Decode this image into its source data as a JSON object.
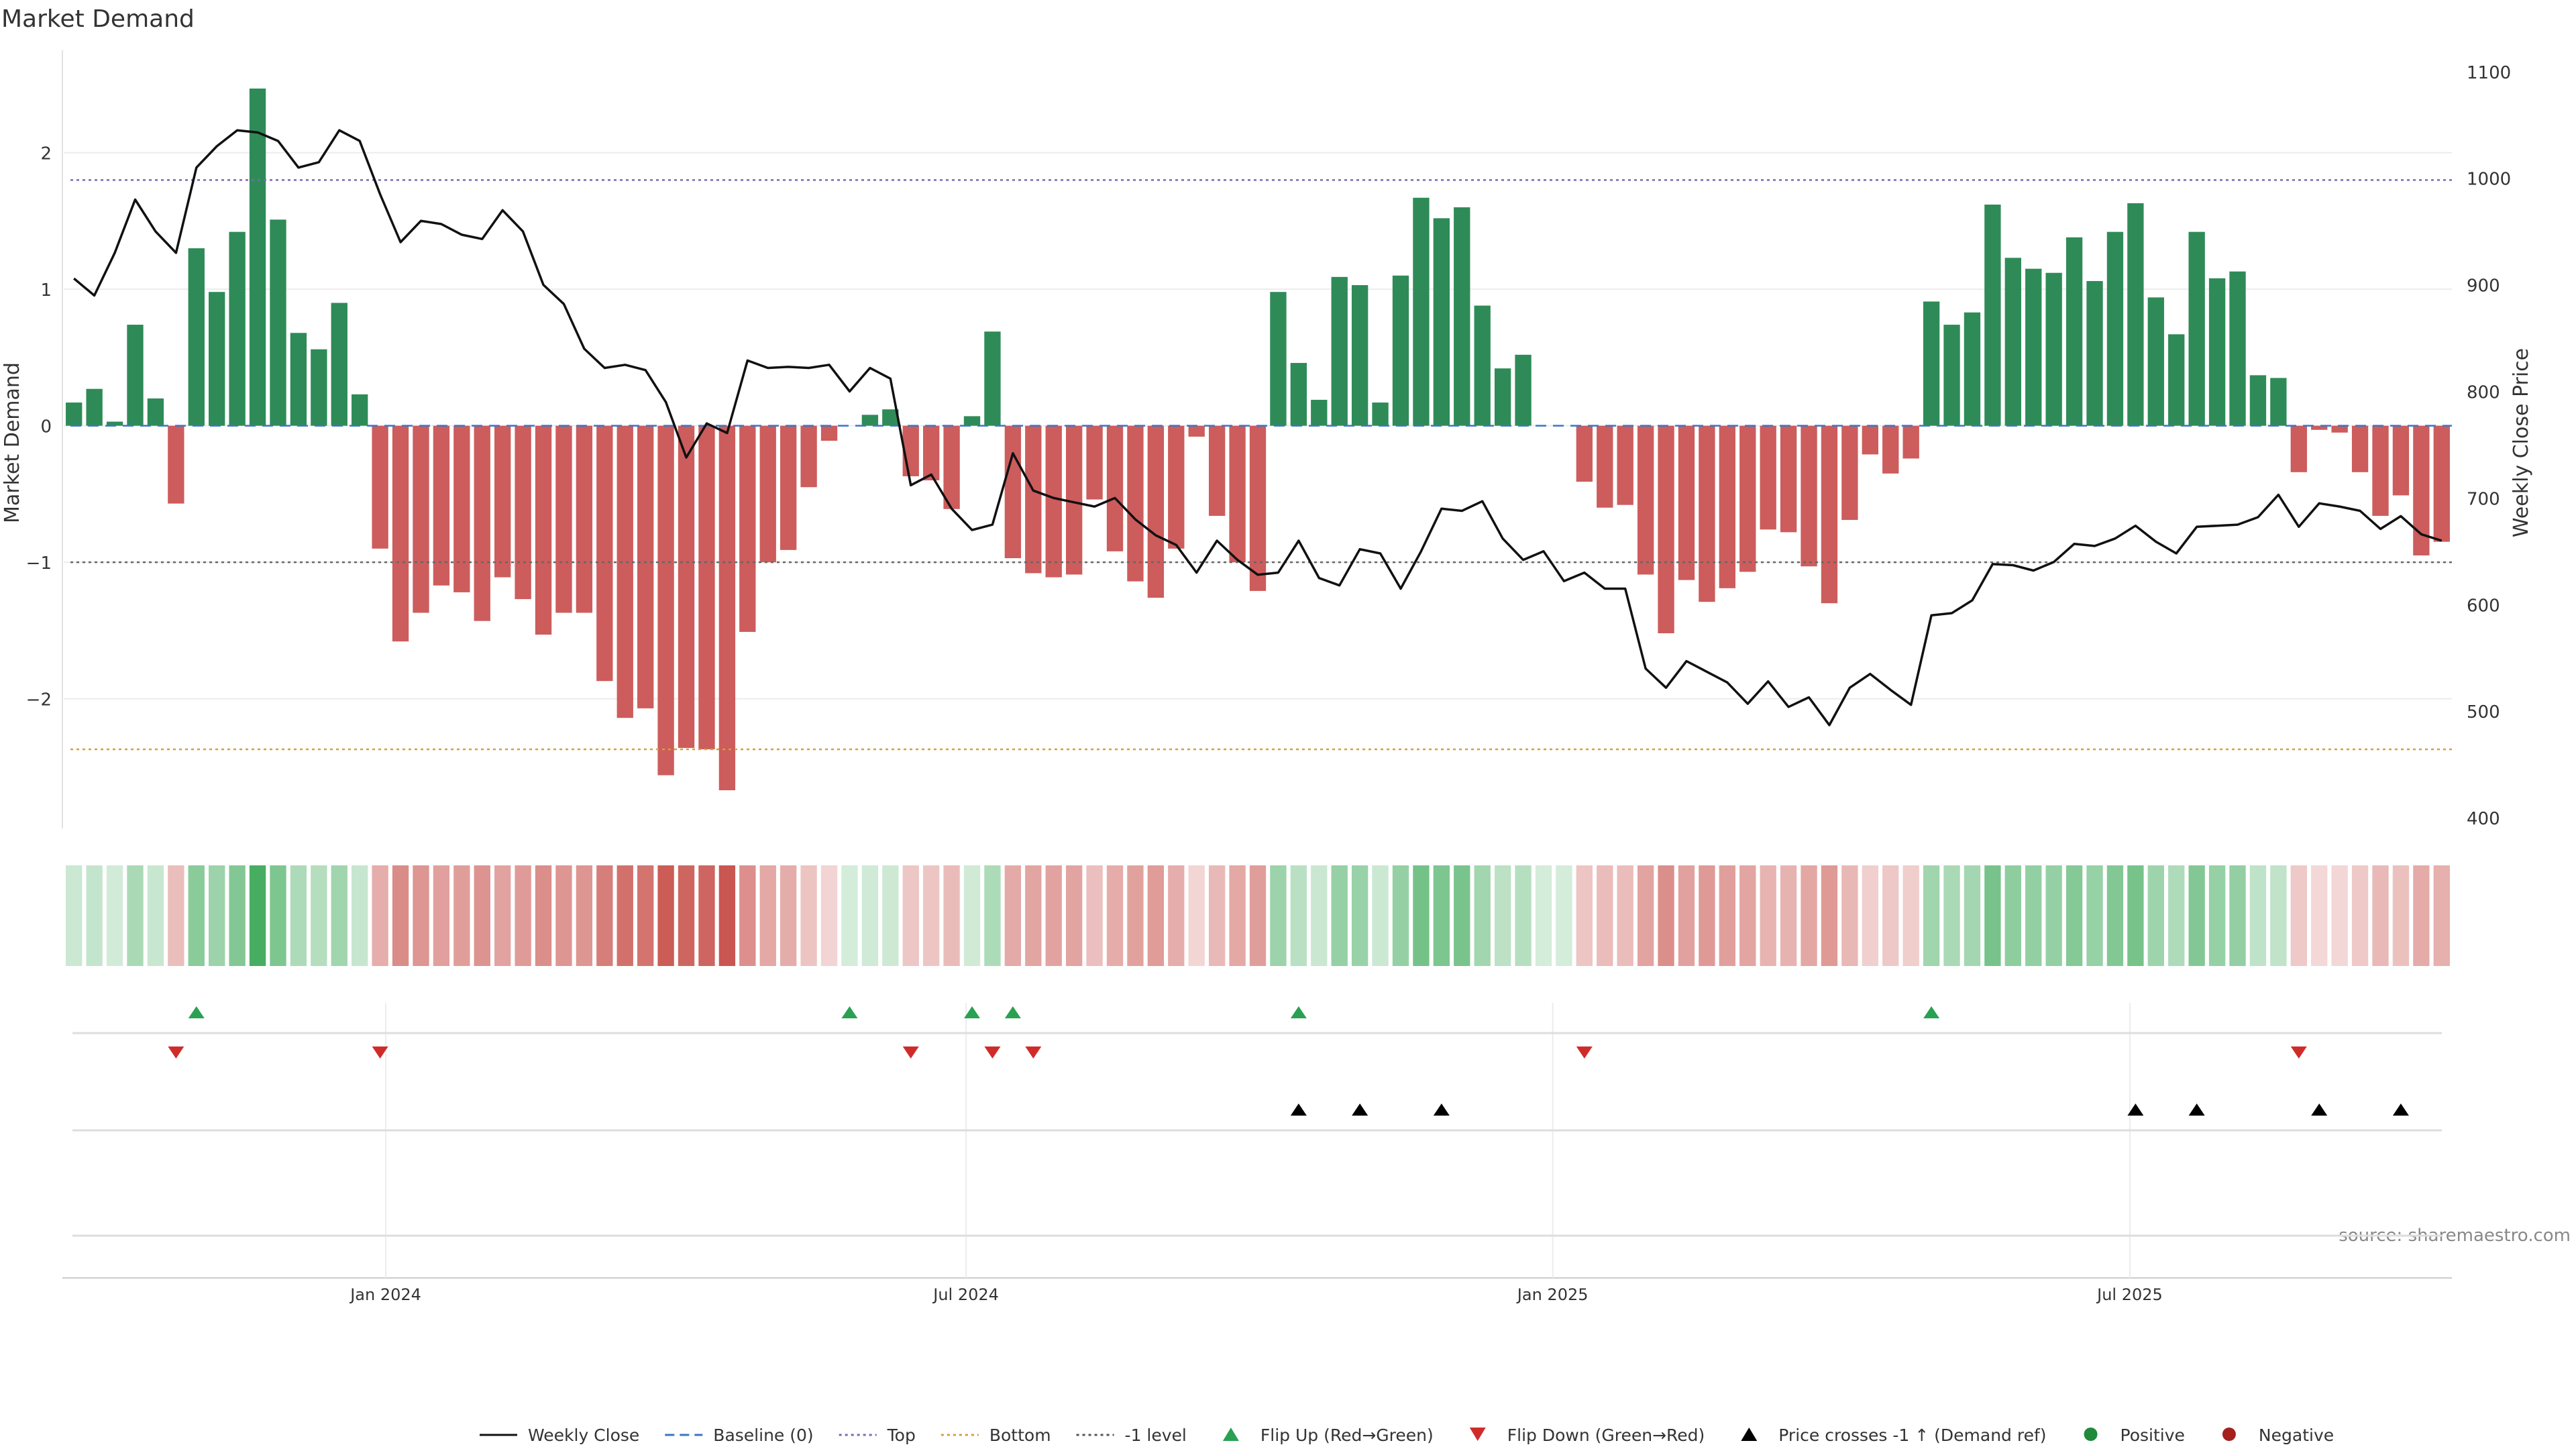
{
  "chart_data": {
    "type": "bar",
    "title": "Market Demand",
    "ylabel": "Market Demand",
    "y2label": "Weekly Close Price",
    "ylim": [
      -2.95,
      2.75
    ],
    "y2lim": [
      390,
      1120
    ],
    "yticks": [
      2,
      1,
      0,
      -1,
      -2
    ],
    "ytick_labels": [
      "2",
      "1",
      "0",
      "−1",
      "−2"
    ],
    "y2ticks": [
      1100,
      1000,
      900,
      800,
      700,
      600,
      500,
      400
    ],
    "y2tick_labels": [
      "1100",
      "1000",
      "900",
      "800",
      "700",
      "600",
      "500",
      "400"
    ],
    "x_start": "2023-09-22",
    "x_end": "2025-10-10",
    "xtick_labels": [
      {
        "date": "2024-01-01",
        "label": "Jan 2024"
      },
      {
        "date": "2024-07-01",
        "label": "Jul 2024"
      },
      {
        "date": "2025-01-01",
        "label": "Jan 2025"
      },
      {
        "date": "2025-07-01",
        "label": "Jul 2025"
      }
    ],
    "reference_lines": [
      {
        "name": "Top",
        "value": 1.8,
        "color": "#7b68b5"
      },
      {
        "name": "Bottom",
        "value": -2.37,
        "color": "#d4a03a"
      },
      {
        "name": "-1 level",
        "value": -1.0,
        "color": "#666666"
      },
      {
        "name": "Baseline (0)",
        "value": 0,
        "color": "#3a76c4"
      }
    ],
    "demand": [
      0.17,
      0.27,
      0.03,
      0.74,
      0.2,
      -0.57,
      1.3,
      0.98,
      1.42,
      2.47,
      1.51,
      0.68,
      0.56,
      0.9,
      0.23,
      -0.9,
      -1.58,
      -1.37,
      -1.17,
      -1.22,
      -1.43,
      -1.11,
      -1.27,
      -1.53,
      -1.37,
      -1.37,
      -1.87,
      -2.14,
      -2.07,
      -2.56,
      -2.36,
      -2.37,
      -2.67,
      -1.51,
      -1.0,
      -0.91,
      -0.45,
      -0.11,
      0.0,
      0.08,
      0.12,
      -0.37,
      -0.4,
      -0.61,
      0.07,
      0.69,
      -0.97,
      -1.08,
      -1.11,
      -1.09,
      -0.54,
      -0.92,
      -1.14,
      -1.26,
      -0.9,
      -0.08,
      -0.66,
      -1.0,
      -1.21,
      0.98,
      0.46,
      0.19,
      1.09,
      1.03,
      0.17,
      1.1,
      1.67,
      1.52,
      1.6,
      0.88,
      0.42,
      0.52,
      0.0,
      0.0,
      -0.41,
      -0.6,
      -0.58,
      -1.09,
      -1.52,
      -1.13,
      -1.29,
      -1.19,
      -1.07,
      -0.76,
      -0.78,
      -1.03,
      -1.3,
      -0.69,
      -0.21,
      -0.35,
      -0.24,
      0.91,
      0.74,
      0.83,
      1.62,
      1.23,
      1.15,
      1.12,
      1.38,
      1.06,
      1.42,
      1.63,
      0.94,
      0.67,
      1.42,
      1.08,
      1.13,
      0.37,
      0.35,
      -0.34,
      -0.03,
      -0.05,
      -0.34,
      -0.66,
      -0.51,
      -0.95,
      -0.85
    ],
    "price": [
      906,
      890,
      930,
      980,
      950,
      930,
      1010,
      1030,
      1045,
      1043,
      1035,
      1010,
      1015,
      1045,
      1035,
      985,
      940,
      960,
      957,
      947,
      943,
      970,
      950,
      900,
      882,
      840,
      822,
      825,
      820,
      790,
      738,
      770,
      761,
      829,
      822,
      823,
      822,
      825,
      800,
      822,
      812,
      712,
      722,
      690,
      670,
      675,
      742,
      707,
      700,
      696,
      692,
      700,
      680,
      665,
      656,
      630,
      660,
      642,
      628,
      630,
      660,
      625,
      618,
      652,
      648,
      615,
      650,
      690,
      688,
      697,
      662,
      642,
      650,
      622,
      630,
      615,
      615,
      540,
      522,
      547,
      537,
      527,
      507,
      528,
      504,
      513,
      487,
      522,
      535,
      520,
      506,
      590,
      592,
      604,
      638,
      637,
      632,
      640,
      657,
      655,
      662,
      674,
      659,
      648,
      673,
      674,
      675,
      682,
      703,
      673,
      695,
      692,
      688,
      671,
      683,
      666,
      660
    ],
    "flips_up": [
      6,
      38,
      44,
      46,
      60,
      91
    ],
    "flips_down": [
      5,
      15,
      41,
      45,
      47,
      74,
      109
    ],
    "price_crosses_up": [
      60,
      63,
      67,
      101,
      104,
      110,
      114
    ],
    "source": "source: sharemaestro.com",
    "legend": [
      {
        "label": "Weekly Close",
        "type": "line-solid",
        "color": "#111111"
      },
      {
        "label": "Baseline (0)",
        "type": "line-dashed",
        "color": "#3a76c4"
      },
      {
        "label": "Top",
        "type": "line-dotted",
        "color": "#7b68b5"
      },
      {
        "label": "Bottom",
        "type": "line-dotted",
        "color": "#d4a03a"
      },
      {
        "label": "-1 level",
        "type": "line-dotted",
        "color": "#555555"
      },
      {
        "label": "Flip Up (Red→Green)",
        "type": "tri-up",
        "color": "#2aa052"
      },
      {
        "label": "Flip Down (Green→Red)",
        "type": "tri-down",
        "color": "#d02b2b"
      },
      {
        "label": "Price crosses -1 ↑ (Demand ref)",
        "type": "tri-up",
        "color": "#000000"
      },
      {
        "label": "Positive",
        "type": "dot",
        "color": "#1f8a3a"
      },
      {
        "label": "Negative",
        "type": "dot",
        "color": "#a51f1f"
      }
    ],
    "legend_position": "bottom-center",
    "colors": {
      "positive": "#2e8b57",
      "negative": "#cd5c5c",
      "price": "#111111"
    }
  }
}
